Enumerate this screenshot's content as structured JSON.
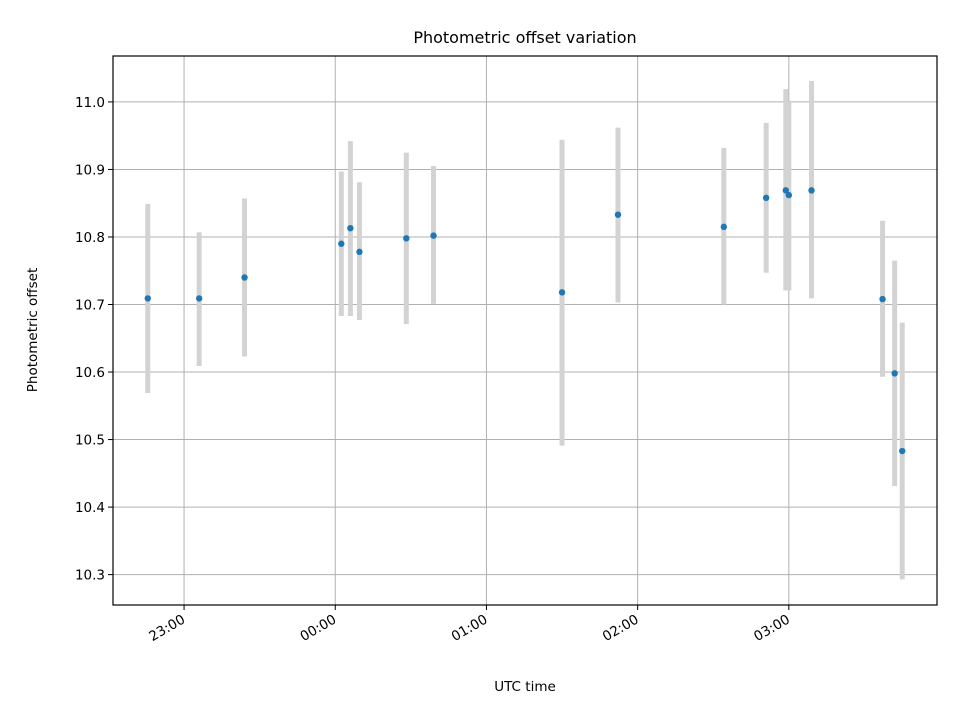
{
  "chart_data": {
    "type": "scatter",
    "title": "Photometric offset variation",
    "xlabel": "UTC time",
    "ylabel": "Photometric offset",
    "x_unit": "hours",
    "xlim": [
      -1.47,
      3.98
    ],
    "ylim": [
      10.255,
      11.068
    ],
    "xticks": [
      {
        "value": -1,
        "label": "23:00"
      },
      {
        "value": 0,
        "label": "00:00"
      },
      {
        "value": 1,
        "label": "01:00"
      },
      {
        "value": 2,
        "label": "02:00"
      },
      {
        "value": 3,
        "label": "03:00"
      }
    ],
    "yticks": [
      {
        "value": 10.3,
        "label": "10.3"
      },
      {
        "value": 10.4,
        "label": "10.4"
      },
      {
        "value": 10.5,
        "label": "10.5"
      },
      {
        "value": 10.6,
        "label": "10.6"
      },
      {
        "value": 10.7,
        "label": "10.7"
      },
      {
        "value": 10.8,
        "label": "10.8"
      },
      {
        "value": 10.9,
        "label": "10.9"
      },
      {
        "value": 11.0,
        "label": "11.0"
      }
    ],
    "grid": true,
    "marker_color": "#1f77b4",
    "errorbar_color": "#d3d3d3",
    "points": [
      {
        "x": -1.24,
        "y": 10.709,
        "ylow": 10.569,
        "yhigh": 10.849
      },
      {
        "x": -0.9,
        "y": 10.709,
        "ylow": 10.609,
        "yhigh": 10.807
      },
      {
        "x": -0.6,
        "y": 10.74,
        "ylow": 10.623,
        "yhigh": 10.857
      },
      {
        "x": 0.04,
        "y": 10.79,
        "ylow": 10.683,
        "yhigh": 10.897
      },
      {
        "x": 0.1,
        "y": 10.813,
        "ylow": 10.683,
        "yhigh": 10.942
      },
      {
        "x": 0.16,
        "y": 10.778,
        "ylow": 10.677,
        "yhigh": 10.881
      },
      {
        "x": 0.47,
        "y": 10.798,
        "ylow": 10.671,
        "yhigh": 10.925
      },
      {
        "x": 0.65,
        "y": 10.802,
        "ylow": 10.701,
        "yhigh": 10.905
      },
      {
        "x": 1.5,
        "y": 10.718,
        "ylow": 10.491,
        "yhigh": 10.944
      },
      {
        "x": 1.87,
        "y": 10.833,
        "ylow": 10.703,
        "yhigh": 10.962
      },
      {
        "x": 2.57,
        "y": 10.815,
        "ylow": 10.7,
        "yhigh": 10.932
      },
      {
        "x": 2.85,
        "y": 10.858,
        "ylow": 10.747,
        "yhigh": 10.969
      },
      {
        "x": 2.98,
        "y": 10.869,
        "ylow": 10.721,
        "yhigh": 11.019
      },
      {
        "x": 3.0,
        "y": 10.862,
        "ylow": 10.721,
        "yhigh": 11.0
      },
      {
        "x": 3.15,
        "y": 10.869,
        "ylow": 10.709,
        "yhigh": 11.031
      },
      {
        "x": 3.62,
        "y": 10.708,
        "ylow": 10.593,
        "yhigh": 10.824
      },
      {
        "x": 3.7,
        "y": 10.598,
        "ylow": 10.431,
        "yhigh": 10.765
      },
      {
        "x": 3.75,
        "y": 10.483,
        "ylow": 10.293,
        "yhigh": 10.673
      }
    ]
  }
}
